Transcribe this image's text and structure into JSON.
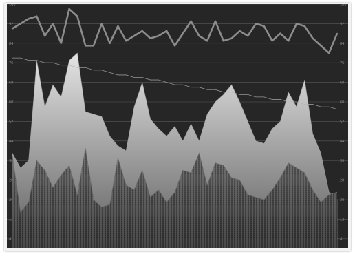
{
  "chart_data": {
    "type": "area",
    "title": "",
    "xlabel": "",
    "ylabel": "",
    "grid": true,
    "legend": "none",
    "x": [
      0,
      1,
      2,
      3,
      4,
      5,
      6,
      7,
      8,
      9,
      10,
      11,
      12,
      13,
      14,
      15,
      16,
      17,
      18,
      19,
      20,
      21,
      22,
      23,
      24,
      25,
      26,
      27,
      28,
      29,
      30,
      31,
      32,
      33,
      34,
      35,
      36,
      37,
      38,
      39,
      40
    ],
    "left_axis": {
      "ylim": [
        0,
        100
      ],
      "ticks": [
        100,
        92,
        84,
        76,
        68,
        60,
        52,
        44,
        36,
        28,
        20,
        12,
        4
      ]
    },
    "right_axis": {
      "ylim": [
        0,
        100
      ],
      "ticks": [
        100,
        92,
        84,
        76,
        68,
        60,
        52,
        44,
        36,
        28,
        20,
        12,
        4
      ]
    },
    "series": [
      {
        "kind": "area-back",
        "values": [
          39,
          33,
          36,
          77,
          58,
          67,
          62,
          77,
          80,
          56,
          55,
          54,
          46,
          42,
          40,
          58,
          68,
          53,
          49,
          46,
          50,
          44,
          51,
          44,
          55,
          60,
          63,
          67,
          60,
          52,
          44,
          43,
          49,
          52,
          64,
          58,
          69,
          47,
          39,
          23,
          20
        ]
      },
      {
        "kind": "area-front",
        "values": [
          38,
          15,
          19,
          36,
          32,
          25,
          30,
          34,
          22,
          41,
          20,
          17,
          18,
          37,
          26,
          24,
          32,
          21,
          24,
          19,
          23,
          32,
          31,
          39,
          26,
          35,
          34,
          29,
          28,
          22,
          21,
          20,
          24,
          29,
          35,
          33,
          31,
          24,
          19,
          22,
          23
        ]
      },
      {
        "kind": "line",
        "values": [
          90,
          92,
          94,
          95,
          87,
          92,
          84,
          98,
          95,
          83,
          83,
          92,
          84,
          91,
          85,
          87,
          89,
          86,
          87,
          89,
          83,
          88,
          93,
          87,
          85,
          93,
          85,
          86,
          89,
          87,
          92,
          91,
          85,
          88,
          85,
          92,
          91,
          86,
          83,
          80,
          88
        ]
      },
      {
        "kind": "trend-line",
        "values": [
          78,
          78,
          77,
          77,
          76,
          76,
          75,
          75,
          74,
          74,
          73,
          73,
          72,
          71,
          71,
          70,
          70,
          69,
          69,
          68,
          67,
          67,
          66,
          66,
          65,
          65,
          64,
          64,
          63,
          63,
          62,
          62,
          61,
          61,
          60,
          60,
          59,
          59,
          58,
          58,
          57
        ]
      }
    ]
  },
  "colors": {
    "background": "#262626",
    "frame": "#f2f2f2",
    "grid": "#5a5a5a",
    "area_back_top": "#e4e4e4",
    "area_back_bottom": "#5e5e5e",
    "area_front_top": "#c8c8c8",
    "area_front_bottom": "#2a2a2a",
    "line": "#8c8c8c",
    "trend": "#b3b3b3"
  }
}
